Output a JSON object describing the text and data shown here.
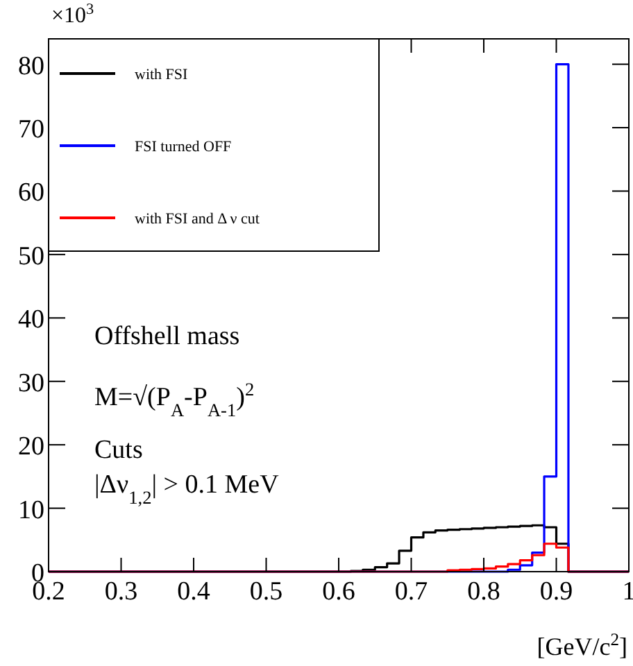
{
  "chart_data": {
    "type": "histogram",
    "xlabel": "[GeV/c$^{2}$]",
    "annotations": [
      "×10$^{3}$",
      "Offshell mass",
      "M=√(P$_{A}$-P$_{A-1}$)$^{2}$",
      "Cuts",
      "|Δν$_{1,2}$| > 0.1 MeV"
    ],
    "bins": [
      0.2,
      0.2167,
      0.2333,
      0.25,
      0.2667,
      0.2833,
      0.3,
      0.3167,
      0.3333,
      0.35,
      0.3667,
      0.3833,
      0.4,
      0.4167,
      0.4333,
      0.45,
      0.4667,
      0.4833,
      0.5,
      0.5167,
      0.5333,
      0.55,
      0.5667,
      0.5833,
      0.6,
      0.6167,
      0.6333,
      0.65,
      0.6667,
      0.6833,
      0.7,
      0.7167,
      0.7333,
      0.75,
      0.7667,
      0.7833,
      0.8,
      0.8167,
      0.8333,
      0.85,
      0.8667,
      0.8833,
      0.9,
      0.9167,
      0.9333,
      0.95,
      0.9667,
      0.9833,
      1.0
    ],
    "series": [
      {
        "name": "with FSI",
        "color": "#000000",
        "values": [
          0,
          0,
          0,
          0,
          0,
          0,
          0,
          0,
          0,
          0,
          0,
          0,
          0,
          0,
          0,
          0,
          0,
          0,
          0,
          0,
          0,
          0,
          0,
          0,
          0,
          0.1,
          0.3,
          0.7,
          1.3,
          3.3,
          5.4,
          6.2,
          6.5,
          6.6,
          6.7,
          6.8,
          6.9,
          7.0,
          7.1,
          7.2,
          7.3,
          7.0,
          4.4,
          0,
          0,
          0,
          0,
          0
        ]
      },
      {
        "name": "FSI turned OFF",
        "color": "#0000ff",
        "values": [
          0,
          0,
          0,
          0,
          0,
          0,
          0,
          0,
          0,
          0,
          0,
          0,
          0,
          0,
          0,
          0,
          0,
          0,
          0,
          0,
          0,
          0,
          0,
          0,
          0,
          0,
          0,
          0,
          0,
          0,
          0,
          0,
          0,
          0,
          0,
          0,
          0,
          0,
          0.3,
          1.0,
          3.0,
          15,
          80,
          0,
          0,
          0,
          0,
          0
        ]
      },
      {
        "name": "with FSI and Δ ν cut",
        "color": "#ff0000",
        "values": [
          0,
          0,
          0,
          0,
          0,
          0,
          0,
          0,
          0,
          0,
          0,
          0,
          0,
          0,
          0,
          0,
          0,
          0,
          0,
          0,
          0,
          0,
          0,
          0,
          0,
          0,
          0,
          0,
          0,
          0,
          0,
          0,
          0,
          0.2,
          0.3,
          0.4,
          0.5,
          0.8,
          1.2,
          1.8,
          2.6,
          4.4,
          3.8,
          0,
          0,
          0,
          0,
          0
        ]
      }
    ],
    "xlim": [
      0.2,
      1.0
    ],
    "xticks": [
      0.2,
      0.3,
      0.4,
      0.5,
      0.6,
      0.7,
      0.8,
      0.9,
      {
        "value": 1.0,
        "label": "1"
      }
    ],
    "ylim": [
      0,
      84
    ],
    "yticks": [
      0,
      10,
      20,
      30,
      40,
      50,
      60,
      70,
      80
    ],
    "legend": "top left",
    "grid": false
  }
}
